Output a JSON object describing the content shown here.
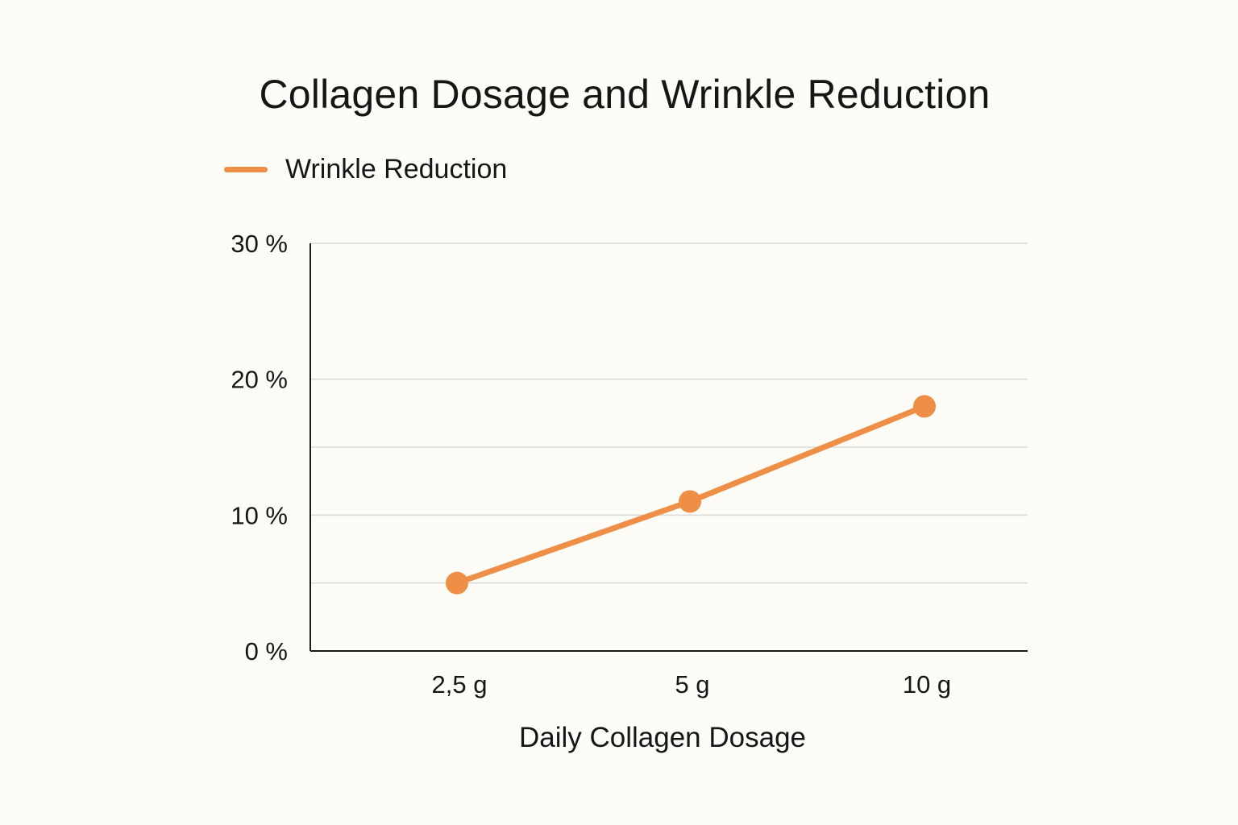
{
  "chart_data": {
    "type": "line",
    "title": "Collagen Dosage and Wrinkle Reduction",
    "xlabel": "Daily Collagen Dosage",
    "ylabel": "",
    "categories": [
      "2,5 g",
      "5 g",
      "10 g"
    ],
    "series": [
      {
        "name": "Wrinkle Reduction",
        "values": [
          5,
          11,
          18
        ],
        "color": "#ef8f47"
      }
    ],
    "y_axis": {
      "tick_values": [
        0,
        10,
        20,
        30
      ],
      "tick_labels": [
        "0 %",
        "10 %",
        "20 %",
        "30 %"
      ],
      "gridline_positions": [
        5,
        10,
        15,
        20
      ]
    },
    "legend_position": "top-left",
    "grid": true,
    "colors": {
      "background": "#fdfcf7",
      "line": "#ef8f47",
      "grid": "#d9d9d5",
      "axis": "#1a1a1a"
    }
  }
}
